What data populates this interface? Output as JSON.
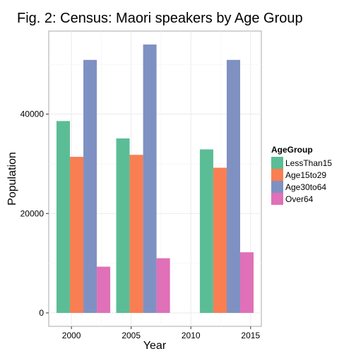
{
  "chart_data": {
    "type": "bar",
    "title": "Fig. 2: Census: Maori speakers by Age Group",
    "xlabel": "Year",
    "ylabel": "Population",
    "x_ticks": [
      2000,
      2005,
      2010,
      2015
    ],
    "y_ticks": [
      0,
      20000,
      40000
    ],
    "xlim": [
      1998.1,
      2015.9
    ],
    "ylim": [
      -2700,
      56700
    ],
    "grid": true,
    "legend": {
      "title": "AgeGroup",
      "placement": "right"
    },
    "categories": [
      2001,
      2006,
      2013
    ],
    "series": [
      {
        "name": "LessThan15",
        "color": "#5bbd96",
        "values": [
          38600,
          35100,
          32900
        ]
      },
      {
        "name": "Age15to29",
        "color": "#f97e52",
        "values": [
          31400,
          31800,
          29200
        ]
      },
      {
        "name": "Age30to64",
        "color": "#7f91c2",
        "values": [
          50900,
          54000,
          50900
        ]
      },
      {
        "name": "Over64",
        "color": "#e070b8",
        "values": [
          9300,
          11000,
          12200
        ]
      }
    ]
  }
}
